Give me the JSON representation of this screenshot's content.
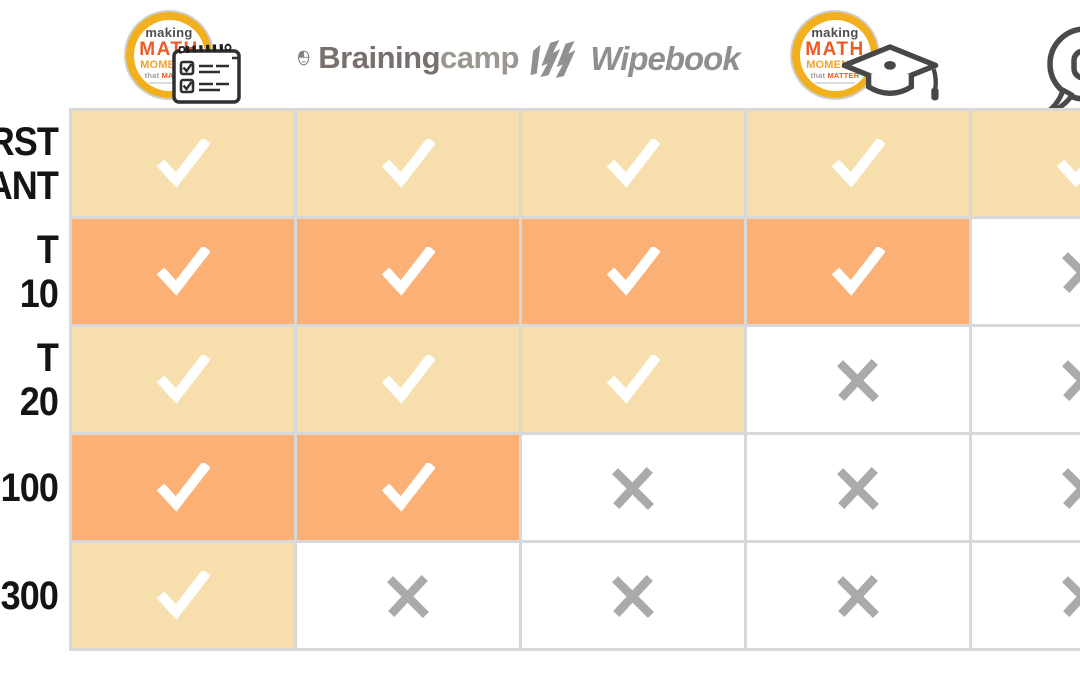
{
  "colors": {
    "cream": "#F6DFAC",
    "orange": "#FBB176",
    "white": "#FFFFFF",
    "check": "#FFFFFF",
    "cross": "#AAAAAA",
    "grid_line": "#D8D8D8",
    "label_text": "#141414",
    "badge_gold": "#F2B01E",
    "badge_orange_red": "#EE5A24",
    "badge_orange": "#F5A02D"
  },
  "logos": {
    "mmm_badge": {
      "line1": "making",
      "line2": "MATH",
      "line3": "MOMENTS",
      "line4a": "that",
      "line4b": "MATTER"
    },
    "brainingcamp": {
      "bold": "Braining",
      "light": "camp"
    },
    "wipebook": {
      "text": "Wipebook"
    },
    "icons": {
      "col1": "notepad-checklist-icon",
      "col2": "brain-head-icon",
      "col3": "wipebook-marker-icon",
      "col4": "graduation-cap-icon",
      "col5": "speech-bubble-icon"
    }
  },
  "chart_data": {
    "type": "table",
    "title": "",
    "columns": [
      "Making Math Moments badge + notepad",
      "Brainingcamp",
      "Wipebook",
      "Making Math Moments badge + graduation cap",
      "Speech bubble (cut off)"
    ],
    "row_labels_visible": [
      "IRST\nANT",
      "T 10",
      "T 20",
      "100",
      "300"
    ],
    "matrix": [
      [
        "check",
        "check",
        "check",
        "check",
        "check"
      ],
      [
        "check",
        "check",
        "check",
        "check",
        "cross"
      ],
      [
        "check",
        "check",
        "check",
        "cross",
        "cross"
      ],
      [
        "check",
        "check",
        "cross",
        "cross",
        "cross"
      ],
      [
        "check",
        "cross",
        "cross",
        "cross",
        "cross"
      ]
    ],
    "cell_backgrounds": [
      [
        "cream",
        "cream",
        "cream",
        "cream",
        "cream"
      ],
      [
        "orange",
        "orange",
        "orange",
        "orange",
        "white"
      ],
      [
        "cream",
        "cream",
        "cream",
        "white",
        "white"
      ],
      [
        "orange",
        "orange",
        "white",
        "white",
        "white"
      ],
      [
        "cream",
        "white",
        "white",
        "white",
        "white"
      ]
    ]
  },
  "table": {
    "rows": [
      {
        "label": "IRST\nANT",
        "cells": [
          {
            "bg": "cream",
            "mark": "check"
          },
          {
            "bg": "cream",
            "mark": "check"
          },
          {
            "bg": "cream",
            "mark": "check"
          },
          {
            "bg": "cream",
            "mark": "check"
          },
          {
            "bg": "cream",
            "mark": "check"
          }
        ]
      },
      {
        "label": "T 10",
        "cells": [
          {
            "bg": "orange",
            "mark": "check"
          },
          {
            "bg": "orange",
            "mark": "check"
          },
          {
            "bg": "orange",
            "mark": "check"
          },
          {
            "bg": "orange",
            "mark": "check"
          },
          {
            "bg": "white",
            "mark": "cross"
          }
        ]
      },
      {
        "label": "T 20",
        "cells": [
          {
            "bg": "cream",
            "mark": "check"
          },
          {
            "bg": "cream",
            "mark": "check"
          },
          {
            "bg": "cream",
            "mark": "check"
          },
          {
            "bg": "white",
            "mark": "cross"
          },
          {
            "bg": "white",
            "mark": "cross"
          }
        ]
      },
      {
        "label": "100",
        "cells": [
          {
            "bg": "orange",
            "mark": "check"
          },
          {
            "bg": "orange",
            "mark": "check"
          },
          {
            "bg": "white",
            "mark": "cross"
          },
          {
            "bg": "white",
            "mark": "cross"
          },
          {
            "bg": "white",
            "mark": "cross"
          }
        ]
      },
      {
        "label": "300",
        "cells": [
          {
            "bg": "cream",
            "mark": "check"
          },
          {
            "bg": "white",
            "mark": "cross"
          },
          {
            "bg": "white",
            "mark": "cross"
          },
          {
            "bg": "white",
            "mark": "cross"
          },
          {
            "bg": "white",
            "mark": "cross"
          }
        ]
      }
    ]
  }
}
